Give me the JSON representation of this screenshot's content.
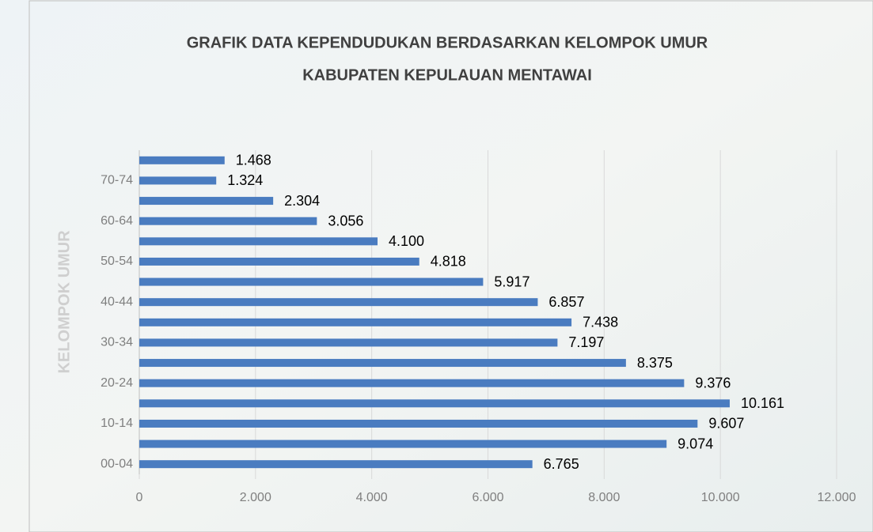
{
  "chart_data": {
    "type": "hbar",
    "title": "GRAFIK DATA KEPENDUDUKAN BERDASARKAN KELOMPOK UMUR",
    "subtitle": "KABUPATEN KEPULAUAN MENTAWAI",
    "y_label": "KELOMPOK UMUR",
    "categories": [
      "00-04",
      null,
      "10-14",
      null,
      "20-24",
      null,
      "30-34",
      null,
      "40-44",
      null,
      "50-54",
      null,
      "60-64",
      null,
      "70-74",
      null
    ],
    "values": [
      6765,
      9074,
      9607,
      10161,
      9376,
      8375,
      7197,
      7438,
      6857,
      5917,
      4818,
      4100,
      3056,
      2304,
      1324,
      1468
    ],
    "value_labels": [
      "6.765",
      "9.074",
      "9.607",
      "10.161",
      "9.376",
      "8.375",
      "7.197",
      "7.438",
      "6.857",
      "5.917",
      "4.818",
      "4.100",
      "3.056",
      "2.304",
      "1.324",
      "1.468"
    ],
    "color": "#4a7cc0",
    "xlim": [
      0,
      12000
    ],
    "xticks": [
      0,
      {
        "value": 2000,
        "label": "2.000"
      },
      {
        "value": 4000,
        "label": "4.000"
      },
      {
        "value": 6000,
        "label": "6.000"
      },
      {
        "value": 8000,
        "label": "8.000"
      },
      {
        "value": 10000,
        "label": "10.000"
      },
      {
        "value": 12000,
        "label": "12.000"
      }
    ],
    "grid": true
  }
}
